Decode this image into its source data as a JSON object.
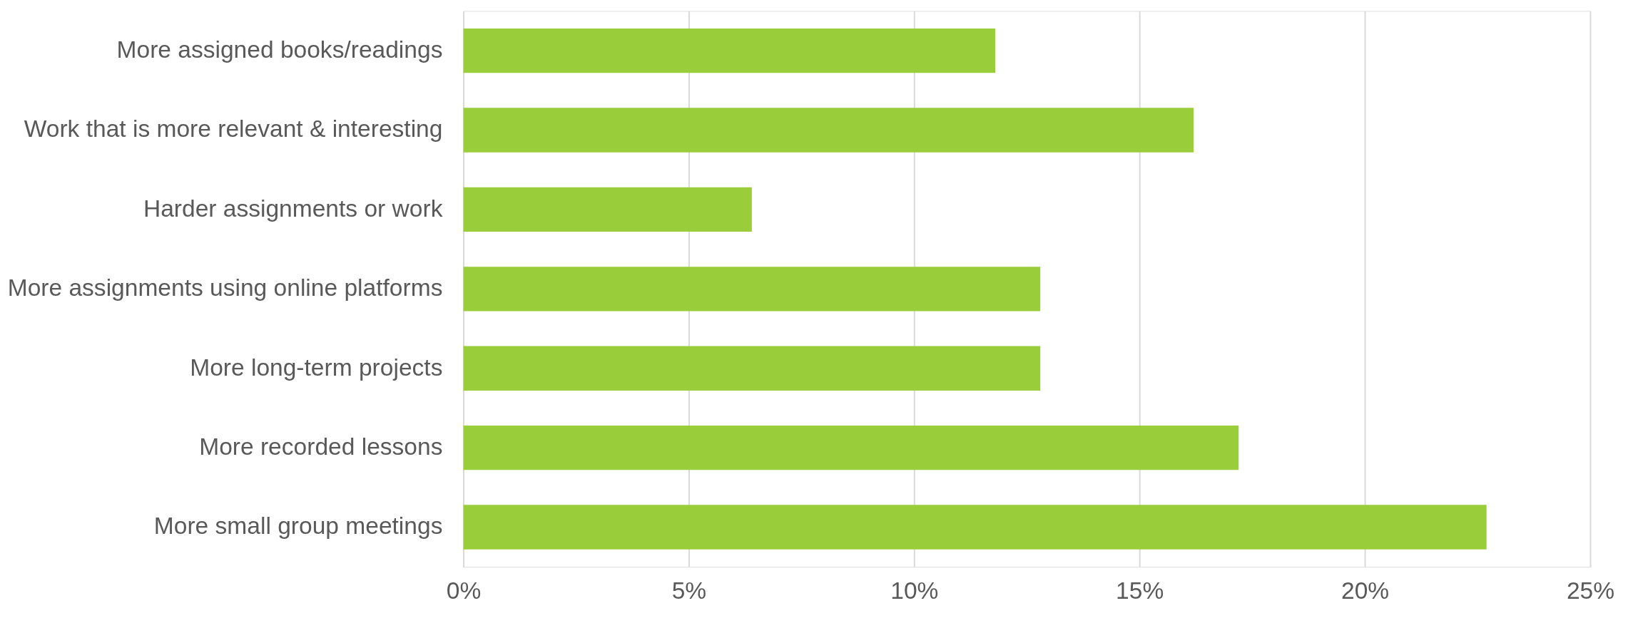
{
  "chart_data": {
    "type": "bar",
    "orientation": "horizontal",
    "categories": [
      "More assigned books/readings",
      "Work that is more relevant & interesting",
      "Harder assignments or work",
      "More assignments using online platforms",
      "More long-term projects",
      "More recorded lessons",
      "More small group meetings"
    ],
    "values": [
      11.8,
      16.2,
      6.4,
      12.8,
      12.8,
      17.2,
      22.7
    ],
    "color": "#9acd3a",
    "xlim": [
      0,
      25
    ],
    "xticks": [
      {
        "value": 0,
        "label": "0%"
      },
      {
        "value": 5,
        "label": "5%"
      },
      {
        "value": 10,
        "label": "10%"
      },
      {
        "value": 15,
        "label": "15%"
      },
      {
        "value": 20,
        "label": "20%"
      },
      {
        "value": 25,
        "label": "25%"
      }
    ],
    "grid": "x"
  }
}
